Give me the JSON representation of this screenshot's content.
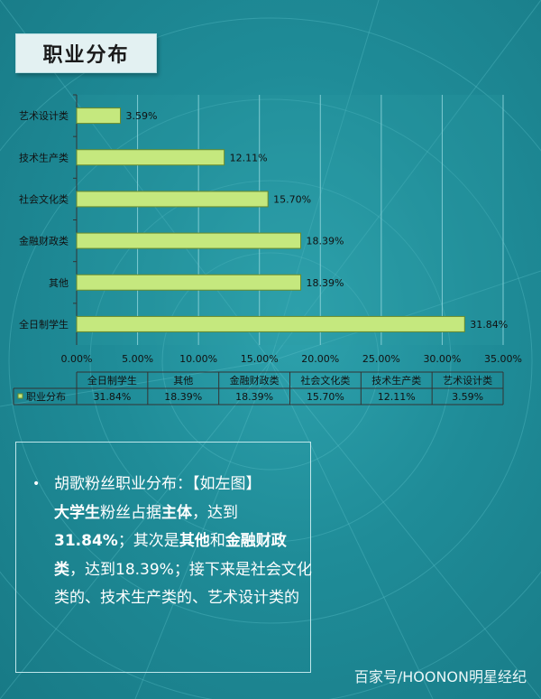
{
  "title": "职业分布",
  "chart_data": {
    "type": "bar",
    "orientation": "horizontal",
    "categories": [
      "艺术设计类",
      "技术生产类",
      "社会文化类",
      "金融财政类",
      "其他",
      "全日制学生"
    ],
    "values": [
      3.59,
      12.11,
      15.7,
      18.39,
      18.39,
      31.84
    ],
    "value_labels": [
      "3.59%",
      "12.11%",
      "15.70%",
      "18.39%",
      "18.39%",
      "31.84%"
    ],
    "x_ticks": [
      "0.00%",
      "5.00%",
      "10.00%",
      "15.00%",
      "20.00%",
      "25.00%",
      "30.00%",
      "35.00%"
    ],
    "xlim": [
      0,
      35
    ],
    "grid": true,
    "bar_color": "#c5e87e",
    "bar_edge": "#6a8a2a",
    "series_name": "职业分布",
    "data_table": {
      "headers": [
        "全日制学生",
        "其他",
        "金融财政类",
        "社会文化类",
        "技术生产类",
        "艺术设计类"
      ],
      "row_label": "职业分布",
      "row_values": [
        "31.84%",
        "18.39%",
        "18.39%",
        "15.70%",
        "12.11%",
        "3.59%"
      ]
    }
  },
  "text_panel": {
    "line1": "胡歌粉丝职业分布：【如左图】",
    "seg_a_bold": "大学生",
    "seg_a_rest": "粉丝占据",
    "seg_b_bold": "主体",
    "seg_b_rest": "，达到",
    "seg_c_bold": "31.84%",
    "seg_c_rest": "；其次是",
    "seg_d_bold": "其他",
    "seg_d_rest": "和",
    "seg_e_bold": "金融财政类",
    "seg_e_rest": "，达到18.39%；接下来是社会文化类的、技术生产类的、艺术设计类的"
  },
  "watermark": "百家号/HOONON明星经纪",
  "colors": {
    "background": "#1f8c98",
    "text_white": "#ffffff"
  }
}
